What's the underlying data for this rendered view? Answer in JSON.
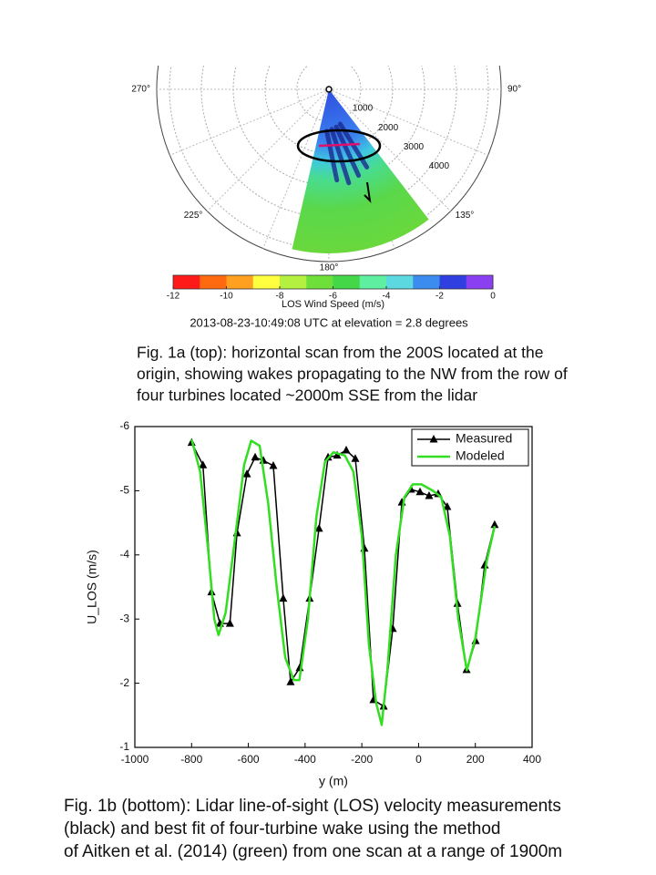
{
  "chart_data": [
    {
      "type": "polar_scan",
      "angle_ticks": [
        {
          "value": 270,
          "label": "270°"
        },
        {
          "value": 90,
          "label": "90°"
        },
        {
          "value": 225,
          "label": "225°"
        },
        {
          "value": 135,
          "label": "135°"
        },
        {
          "value": 180,
          "label": "180°"
        }
      ],
      "rlim": [
        0,
        5400
      ],
      "rticks": [
        1000,
        2000,
        3000,
        4000
      ],
      "colorbar": {
        "label": "LOS Wind Speed (m/s)",
        "lim": [
          -12,
          0
        ],
        "ticks": [
          -12,
          -10,
          -8,
          -6,
          -4,
          -2,
          0
        ],
        "colors": [
          "#ff1a1a",
          "#ff6a10",
          "#ffa020",
          "#ffff40",
          "#b4f040",
          "#6fe03a",
          "#44d848",
          "#5ef0a0",
          "#5cd8e0",
          "#3c8cf0",
          "#3040e0",
          "#8a40f0"
        ]
      },
      "subtitle": "2013-08-23-10:49:08 UTC at elevation = 2.8 degrees"
    },
    {
      "type": "line",
      "xlabel": "y (m)",
      "ylabel": "U_LOS (m/s)",
      "xlim": [
        -1000,
        400
      ],
      "xticks": [
        -1000,
        -800,
        -600,
        -400,
        -200,
        0,
        200,
        400
      ],
      "ylim": [
        -1,
        -6
      ],
      "yticks": [
        -6,
        -5,
        -4,
        -3,
        -2,
        -1
      ],
      "legend": "upper right",
      "series": [
        {
          "name": "Measured",
          "color": "#000000",
          "marker": "triangle",
          "x": [
            -800,
            -760,
            -730,
            -700,
            -665,
            -640,
            -605,
            -576,
            -547,
            -512,
            -477,
            -451,
            -419,
            -384,
            -351,
            -319,
            -287,
            -255,
            -223,
            -191,
            -159,
            -123,
            -91,
            -59,
            -27,
            5,
            37,
            69,
            101,
            137,
            169,
            201,
            233,
            268
          ],
          "values": [
            -5.75,
            -5.4,
            -3.42,
            -2.93,
            -2.93,
            -4.34,
            -5.26,
            -5.52,
            -5.47,
            -5.39,
            -3.32,
            -2.02,
            -2.24,
            -3.32,
            -4.41,
            -5.52,
            -5.55,
            -5.63,
            -5.5,
            -4.1,
            -1.74,
            -1.64,
            -2.85,
            -4.82,
            -5.02,
            -4.98,
            -4.92,
            -4.95,
            -4.75,
            -3.24,
            -2.21,
            -2.66,
            -3.84,
            -4.47
          ]
        },
        {
          "name": "Modeled",
          "color": "#33dd22",
          "x": [
            -800,
            -770,
            -740,
            -720,
            -705,
            -680,
            -640,
            -615,
            -590,
            -560,
            -530,
            -500,
            -470,
            -440,
            -420,
            -390,
            -360,
            -330,
            -300,
            -260,
            -230,
            -200,
            -175,
            -150,
            -130,
            -110,
            -80,
            -50,
            -20,
            10,
            50,
            80,
            110,
            140,
            170,
            200,
            240,
            268
          ],
          "values": [
            -5.8,
            -5.3,
            -4.0,
            -3.0,
            -2.75,
            -3.1,
            -4.5,
            -5.4,
            -5.78,
            -5.7,
            -4.8,
            -3.5,
            -2.4,
            -2.05,
            -2.05,
            -3.0,
            -4.6,
            -5.45,
            -5.6,
            -5.55,
            -5.3,
            -4.3,
            -2.6,
            -1.7,
            -1.35,
            -2.2,
            -4.0,
            -4.9,
            -5.1,
            -5.1,
            -5.0,
            -4.9,
            -4.3,
            -3.0,
            -2.2,
            -2.7,
            -3.9,
            -4.45
          ]
        }
      ]
    }
  ],
  "captions": [
    [
      "Fig. 1a (top): horizontal scan from the 200S located at the",
      "origin, showing wakes propagating to the NW from the row of",
      "four turbines located ~2000m SSE from the lidar"
    ],
    [
      "Fig. 1b (bottom): Lidar line-of-sight (LOS) velocity measurements",
      "(black) and best fit of four-turbine wake using the method",
      "of Aitken et al. (2014) (green) from one scan at a range of 1900m"
    ]
  ]
}
